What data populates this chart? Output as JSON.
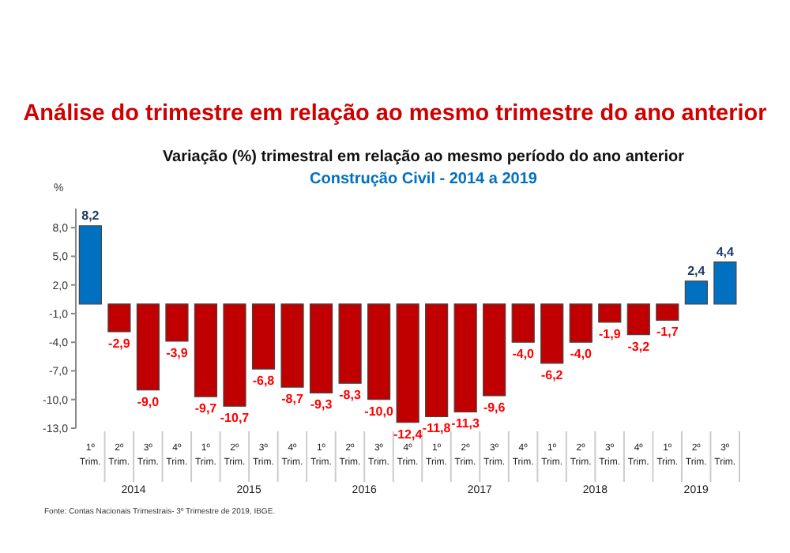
{
  "chart_data": {
    "type": "bar",
    "title": "Análise do trimestre em relação ao mesmo trimestre do ano anterior",
    "subtitle": "Variação (%) trimestral em relação ao mesmo período do ano anterior\nConstrução Civil - 2014 a 2019",
    "ylabel": "%",
    "categories": [
      "1º Trim.",
      "2º Trim.",
      "3º Trim.",
      "4º Trim.",
      "1º Trim.",
      "2º Trim.",
      "3º Trim.",
      "4º Trim.",
      "1º Trim.",
      "2º Trim.",
      "3º Trim.",
      "4º Trim.",
      "1º Trim.",
      "2º Trim.",
      "3º Trim.",
      "4º Trim.",
      "1º Trim.",
      "2º Trim.",
      "3º Trim.",
      "4º Trim.",
      "1º Trim.",
      "2º Trim.",
      "3º Trim."
    ],
    "values": [
      8.2,
      -2.9,
      -9.0,
      -3.9,
      -9.7,
      -10.7,
      -6.8,
      -8.7,
      -9.3,
      -8.3,
      -10.0,
      -12.4,
      -11.8,
      -11.3,
      -9.6,
      -4.0,
      -6.2,
      -4.0,
      -1.9,
      -3.2,
      -1.7,
      2.4,
      4.4
    ],
    "value_labels": [
      "8,2",
      "-2,9",
      "-9,0",
      "-3,9",
      "-9,7",
      "-10,7",
      "-6,8",
      "-8,7",
      "-9,3",
      "-8,3",
      "-10,0",
      "-12,4",
      "-11,8",
      "-11,3",
      "-9,6",
      "-4,0",
      "-6,2",
      "-4,0",
      "-1,9",
      "-3,2",
      "-1,7",
      "2,4",
      "4,4"
    ],
    "colors": [
      "#0070c0",
      "#c00000",
      "#c00000",
      "#c00000",
      "#c00000",
      "#c00000",
      "#c00000",
      "#c00000",
      "#c00000",
      "#c00000",
      "#c00000",
      "#c00000",
      "#c00000",
      "#c00000",
      "#c00000",
      "#c00000",
      "#c00000",
      "#c00000",
      "#c00000",
      "#c00000",
      "#c00000",
      "#0070c0",
      "#0070c0"
    ],
    "ylim": [
      -13,
      10
    ],
    "yticks": [
      {
        "value": 8,
        "label": "8,0"
      },
      {
        "value": 5,
        "label": "5,0"
      },
      {
        "value": 2,
        "label": "2,0"
      },
      {
        "value": -1,
        "label": "-1,0"
      },
      {
        "value": -4,
        "label": "-4,0"
      },
      {
        "value": -7,
        "label": "-7,0"
      },
      {
        "value": -10,
        "label": "-10,0"
      },
      {
        "value": -13,
        "label": "-13,0"
      }
    ],
    "grid": false,
    "legend": false,
    "annotations": [
      "2014",
      "2015",
      "2016",
      "2017",
      "2018",
      "2019",
      "Fonte: Contas Nacionais Trimestrais- 3º Trimestre de 2019, IBGE."
    ]
  }
}
